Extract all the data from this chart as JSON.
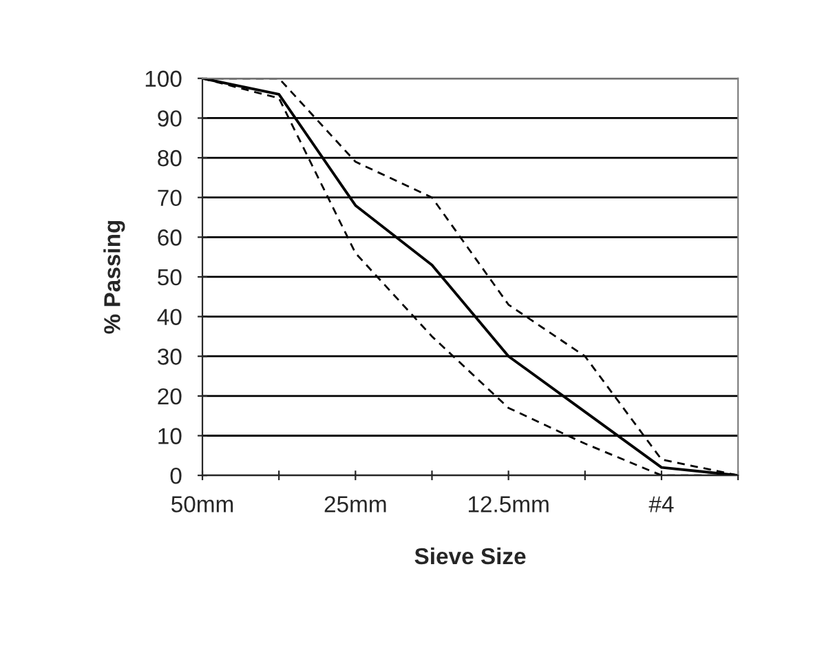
{
  "chart_data": {
    "type": "line",
    "xlabel": "Sieve Size",
    "ylabel": "% Passing",
    "categories": [
      "50mm",
      null,
      "25mm",
      null,
      "12.5mm",
      null,
      "#4",
      null
    ],
    "series": [
      {
        "color": "#000000",
        "line_style": "solid",
        "values": [
          100,
          96,
          68,
          53,
          30,
          16,
          2,
          0
        ]
      },
      {
        "color": "#000000",
        "line_style": "dashed",
        "values": [
          100,
          100,
          79,
          70,
          43,
          30,
          4,
          0
        ]
      },
      {
        "color": "#000000",
        "line_style": "dashed",
        "values": [
          100,
          95,
          56,
          35,
          17,
          8,
          0,
          0
        ]
      }
    ],
    "ylim": [
      0,
      100
    ],
    "yticks": [
      0,
      10,
      20,
      30,
      40,
      50,
      60,
      70,
      80,
      90,
      100
    ],
    "grid": "y",
    "marker": "none",
    "legend": false
  }
}
